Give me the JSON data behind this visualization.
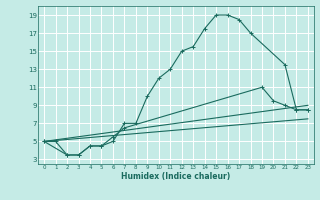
{
  "xlabel": "Humidex (Indice chaleur)",
  "xlim": [
    -0.5,
    23.5
  ],
  "ylim": [
    2.5,
    20
  ],
  "yticks": [
    3,
    5,
    7,
    9,
    11,
    13,
    15,
    17,
    19
  ],
  "xticks": [
    0,
    1,
    2,
    3,
    4,
    5,
    6,
    7,
    8,
    9,
    10,
    11,
    12,
    13,
    14,
    15,
    16,
    17,
    18,
    19,
    20,
    21,
    22,
    23
  ],
  "bg_color": "#c5ebe6",
  "grid_color": "#ffffff",
  "line_color": "#1a6b5e",
  "curves": [
    {
      "x": [
        0,
        1,
        2,
        3,
        4,
        5,
        6,
        7,
        8,
        9,
        10,
        11,
        12,
        13,
        14,
        15,
        16,
        17,
        18,
        21,
        22,
        23
      ],
      "y": [
        5,
        5,
        3.5,
        3.5,
        4.5,
        4.5,
        5.0,
        7.0,
        7.0,
        10.0,
        12.0,
        13.0,
        15.0,
        15.5,
        17.5,
        19.0,
        19.0,
        18.5,
        17.0,
        13.5,
        8.5,
        8.5
      ],
      "marker": true
    },
    {
      "x": [
        0,
        2,
        3,
        4,
        5,
        6,
        7,
        19,
        20,
        21,
        22,
        23
      ],
      "y": [
        5,
        3.5,
        3.5,
        4.5,
        4.5,
        5.5,
        6.5,
        11.0,
        9.5,
        9.0,
        8.5,
        8.5
      ],
      "marker": true
    },
    {
      "x": [
        0,
        23
      ],
      "y": [
        5,
        9.0
      ],
      "marker": false
    },
    {
      "x": [
        0,
        23
      ],
      "y": [
        5,
        7.5
      ],
      "marker": false
    }
  ]
}
